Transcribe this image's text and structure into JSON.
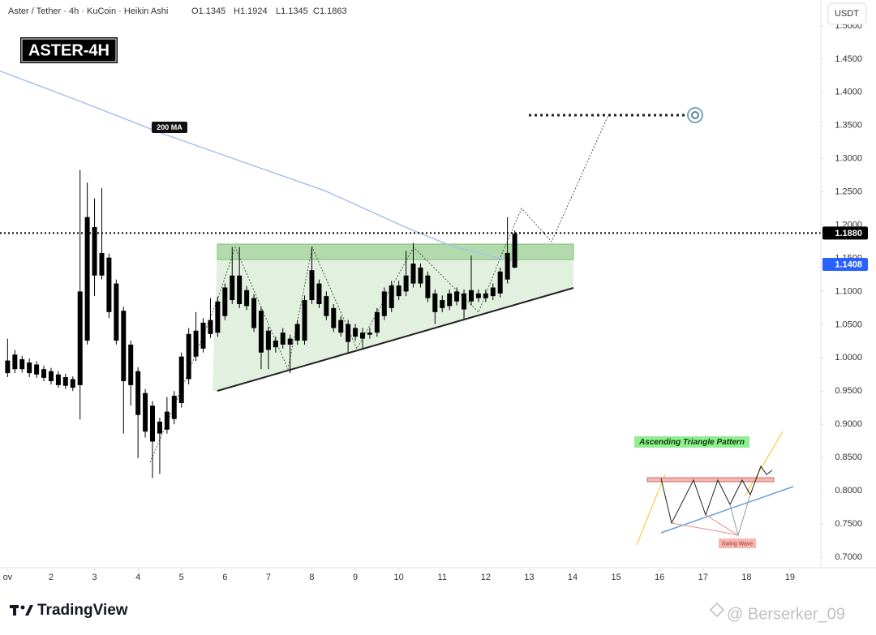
{
  "chart_data": {
    "type": "candlestick",
    "subtitle": "Aster / Tether · 4h · KuCoin · Heikin Ashi",
    "ohlc": [
      "O1.1345",
      "H1.1924",
      "L1.1345",
      "C1.1863"
    ],
    "label": "ASTER-4H",
    "currency": "USDT",
    "color": "#000000",
    "x": [
      1,
      1.167,
      1.333,
      1.5,
      1.667,
      1.833,
      2,
      2.167,
      2.333,
      2.5,
      2.667,
      2.833,
      3,
      3.167,
      3.333,
      3.5,
      3.667,
      3.833,
      4,
      4.167,
      4.333,
      4.5,
      4.667,
      4.833,
      5,
      5.167,
      5.333,
      5.5,
      5.667,
      5.833,
      6,
      6.167,
      6.333,
      6.5,
      6.667,
      6.833,
      7,
      7.167,
      7.333,
      7.5,
      7.667,
      7.833,
      8,
      8.167,
      8.333,
      8.5,
      8.667,
      8.833,
      9,
      9.167,
      9.333,
      9.5,
      9.667,
      9.833,
      10,
      10.167,
      10.333,
      10.5,
      10.667,
      10.833,
      11,
      11.167,
      11.333,
      11.5,
      11.667,
      11.833,
      12,
      12.167,
      12.333,
      12.5,
      12.667
    ],
    "open": [
      0.996,
      1.005,
      0.998,
      0.993,
      0.99,
      0.983,
      0.98,
      0.975,
      0.971,
      0.968,
      0.959,
      1.026,
      1.197,
      1.158,
      1.151,
      1.112,
      1.071,
      1.02,
      0.98,
      0.947,
      0.928,
      0.886,
      0.892,
      0.908,
      0.932,
      0.968,
      1.002,
      1.014,
      1.036,
      1.038,
      1.063,
      1.087,
      1.124,
      1.102,
      1.09,
      1.071,
      1.041,
      1.026,
      1.038,
      1.029,
      1.026,
      1.026,
      1.087,
      1.112,
      1.093,
      1.075,
      1.057,
      1.051,
      1.045,
      1.038,
      1.038,
      1.038,
      1.063,
      1.075,
      1.093,
      1.1,
      1.112,
      1.136,
      1.124,
      1.097,
      1.087,
      1.097,
      1.085,
      1.097,
      1.085,
      1.097,
      1.09,
      1.093,
      1.097,
      1.118,
      1.136
    ],
    "high": [
      1.029,
      1.012,
      1.003,
      0.999,
      0.995,
      0.988,
      0.985,
      0.98,
      0.976,
      0.972,
      1.283,
      1.264,
      1.24,
      1.256,
      1.157,
      1.118,
      1.077,
      1.026,
      0.986,
      0.953,
      0.935,
      0.91,
      0.941,
      0.95,
      1.008,
      1.045,
      1.069,
      1.06,
      1.09,
      1.092,
      1.112,
      1.167,
      1.167,
      1.108,
      1.096,
      1.077,
      1.047,
      1.032,
      1.045,
      1.035,
      1.057,
      1.094,
      1.167,
      1.118,
      1.1,
      1.081,
      1.063,
      1.057,
      1.051,
      1.045,
      1.045,
      1.075,
      1.106,
      1.116,
      1.116,
      1.161,
      1.173,
      1.142,
      1.13,
      1.103,
      1.094,
      1.103,
      1.106,
      1.103,
      1.154,
      1.103,
      1.103,
      1.112,
      1.136,
      1.212,
      1.192
    ],
    "low": [
      0.971,
      0.977,
      0.978,
      0.971,
      0.97,
      0.965,
      0.96,
      0.955,
      0.953,
      0.95,
      0.907,
      1.02,
      1.093,
      1.118,
      1.06,
      1.02,
      0.886,
      0.928,
      0.849,
      0.88,
      0.819,
      0.825,
      0.886,
      0.9,
      0.925,
      0.96,
      0.995,
      1.008,
      1.03,
      1.032,
      1.057,
      1.081,
      1.075,
      1.072,
      1.039,
      0.983,
      0.983,
      1.008,
      1.014,
      0.977,
      1.02,
      1.02,
      1.081,
      1.075,
      1.057,
      1.039,
      1.032,
      1.008,
      1.026,
      1.014,
      1.029,
      1.032,
      1.057,
      1.069,
      1.087,
      1.093,
      1.106,
      1.106,
      1.084,
      1.051,
      1.069,
      1.072,
      1.079,
      1.059,
      1.079,
      1.084,
      1.084,
      1.087,
      1.091,
      1.112,
      1.135
    ],
    "close": [
      0.977,
      0.983,
      0.983,
      0.977,
      0.975,
      0.97,
      0.965,
      0.959,
      0.958,
      0.955,
      1.1,
      1.212,
      1.124,
      1.124,
      1.069,
      1.026,
      0.965,
      0.959,
      0.914,
      0.889,
      0.874,
      0.904,
      0.919,
      0.943,
      1.002,
      1.036,
      1.041,
      1.053,
      1.057,
      1.085,
      1.106,
      1.124,
      1.081,
      1.078,
      1.045,
      1.008,
      1.012,
      1.016,
      1.02,
      1.02,
      1.051,
      1.087,
      1.132,
      1.081,
      1.063,
      1.045,
      1.038,
      1.024,
      1.032,
      1.029,
      1.035,
      1.069,
      1.1,
      1.109,
      1.109,
      1.124,
      1.142,
      1.112,
      1.09,
      1.069,
      1.075,
      1.078,
      1.1,
      1.073,
      1.102,
      1.09,
      1.097,
      1.106,
      1.13,
      1.158,
      1.187
    ],
    "ma": {
      "name": "200 MA",
      "color": "#a9c1ec",
      "x": [
        0.825,
        2.69,
        4.56,
        6.42,
        8.29,
        10.15,
        11.27,
        12.58
      ],
      "values": [
        1.432,
        1.386,
        1.338,
        1.295,
        1.252,
        1.197,
        1.167,
        1.146
      ]
    },
    "price_lines": [
      {
        "value": 1.188,
        "label": "1.1880",
        "color": "#000000"
      },
      {
        "value": 1.1408,
        "label": "1.1408",
        "color": "#2962ff"
      }
    ],
    "xlim": [
      0.825,
      19.71
    ],
    "ylim": [
      0.684,
      1.539
    ],
    "xticks": [
      {
        "value": 1,
        "label": "ov"
      },
      2,
      3,
      4,
      5,
      6,
      7,
      8,
      9,
      10,
      11,
      12,
      13,
      14,
      15,
      16,
      17,
      18,
      19
    ],
    "yticks": [
      {
        "value": 0.7,
        "label": "0.7000"
      },
      {
        "value": 0.75,
        "label": "0.7500"
      },
      {
        "value": 0.8,
        "label": "0.8000"
      },
      {
        "value": 0.85,
        "label": "0.8500"
      },
      {
        "value": 0.9,
        "label": "0.9000"
      },
      {
        "value": 0.95,
        "label": "0.9500"
      },
      {
        "value": 1.0,
        "label": "1.0000"
      },
      {
        "value": 1.05,
        "label": "1.0500"
      },
      {
        "value": 1.1,
        "label": "1.1000"
      },
      {
        "value": 1.15,
        "label": "1.1500"
      },
      {
        "value": 1.2,
        "label": "1.2000"
      },
      {
        "value": 1.25,
        "label": "1.2500"
      },
      {
        "value": 1.3,
        "label": "1.3000"
      },
      {
        "value": 1.35,
        "label": "1.3500"
      },
      {
        "value": 1.4,
        "label": "1.4000"
      },
      {
        "value": 1.45,
        "label": "1.4500"
      },
      {
        "value": 1.5,
        "label": "1.5000"
      }
    ],
    "grid": false,
    "inset": {
      "title": "Ascending Triangle Pattern",
      "caption": "Swing Wave"
    },
    "branding": "TradingView",
    "watermark": "@ Berserker_09"
  }
}
